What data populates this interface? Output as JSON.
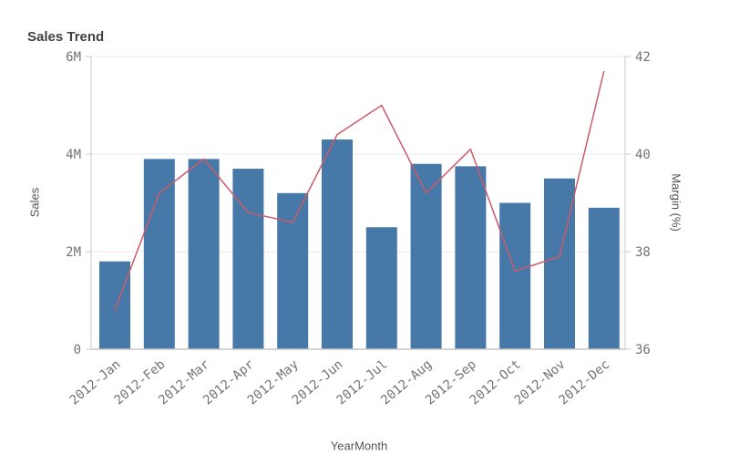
{
  "header": {
    "title": "Sales Trend"
  },
  "chart_data": {
    "type": "combo",
    "title": "Sales Trend",
    "categories": [
      "2012-Jan",
      "2012-Feb",
      "2012-Mar",
      "2012-Apr",
      "2012-May",
      "2012-Jun",
      "2012-Jul",
      "2012-Aug",
      "2012-Sep",
      "2012-Oct",
      "2012-Nov",
      "2012-Dec"
    ],
    "series": [
      {
        "name": "Sales",
        "type": "bar",
        "yaxis": "left",
        "unit": "M",
        "color": "#4678a8",
        "values": [
          1.8,
          3.9,
          3.9,
          3.7,
          3.2,
          4.3,
          2.5,
          3.8,
          3.75,
          3.0,
          3.5,
          2.9
        ]
      },
      {
        "name": "Margin (%)",
        "type": "line",
        "yaxis": "right",
        "unit": "%",
        "color": "#c95c6b",
        "values": [
          36.8,
          39.2,
          39.9,
          38.8,
          38.6,
          40.4,
          41.0,
          39.2,
          40.1,
          37.6,
          37.9,
          41.7
        ]
      }
    ],
    "axes": {
      "left": {
        "title": "Sales",
        "min": 0,
        "max": 6,
        "tick_values": [
          0,
          2,
          4,
          6
        ],
        "tick_labels": [
          "0",
          "2M",
          "4M",
          "6M"
        ]
      },
      "right": {
        "title": "Margin (%)",
        "min": 36,
        "max": 42,
        "tick_values": [
          36,
          38,
          40,
          42
        ],
        "tick_labels": [
          "36",
          "38",
          "40",
          "42"
        ]
      },
      "x": {
        "title": "YearMonth",
        "label_rotation_deg": -40
      }
    },
    "grid": "horizontal-only",
    "legend": "none"
  },
  "colors": {
    "bar": "#4678a8",
    "line": "#c95c6b",
    "grid": "#e8e8e8",
    "axis_line": "#c8c8c8",
    "baseline": "#c6c6c6",
    "tick_text": "#737373",
    "axis_title_text": "#545454",
    "title_text": "#404040",
    "background": "#ffffff"
  }
}
